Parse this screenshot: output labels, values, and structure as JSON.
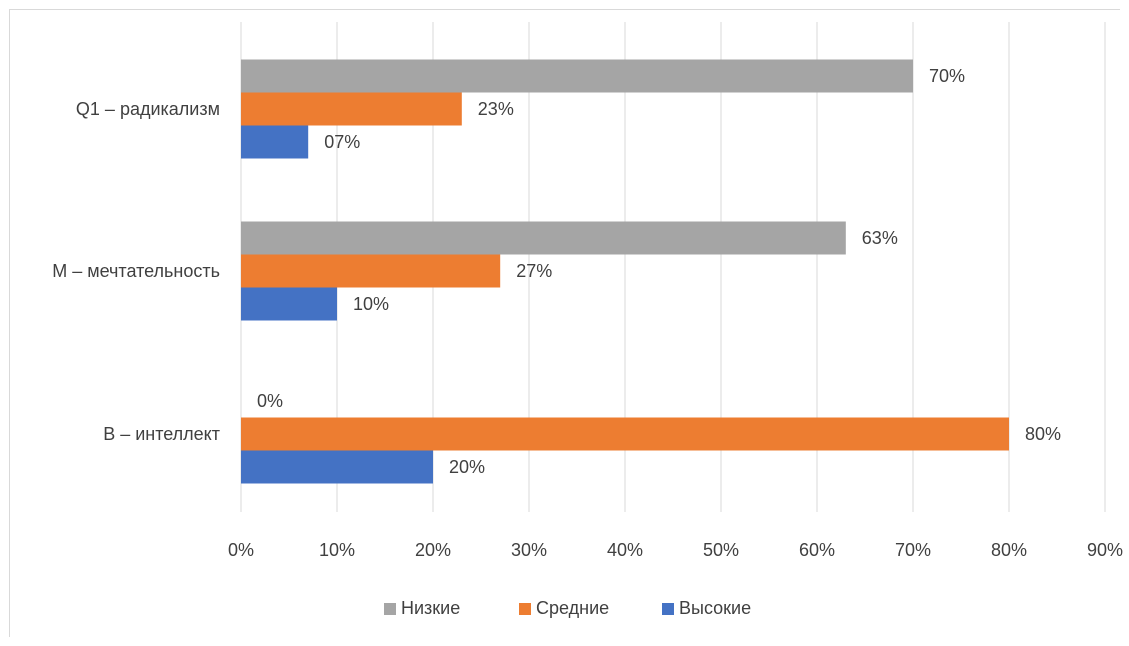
{
  "chart_data": {
    "type": "bar",
    "orientation": "horizontal",
    "categories": [
      "Q1 – радикализм",
      "M – мечтательность",
      "B – интеллект"
    ],
    "series": [
      {
        "name": "Низкие",
        "color": "#a5a5a5",
        "values": [
          70,
          63,
          0
        ],
        "labels": [
          "70%",
          "63%",
          "0%"
        ]
      },
      {
        "name": "Средние",
        "color": "#ed7d31",
        "values": [
          23,
          27,
          80
        ],
        "labels": [
          "23%",
          "27%",
          "80%"
        ]
      },
      {
        "name": "Высокие",
        "color": "#4472c4",
        "values": [
          7,
          10,
          20
        ],
        "labels": [
          "07%",
          "10%",
          "20%"
        ]
      }
    ],
    "x_ticks": [
      "0%",
      "10%",
      "20%",
      "30%",
      "40%",
      "50%",
      "60%",
      "70%",
      "80%",
      "90%"
    ],
    "xlim": [
      0,
      90
    ],
    "grid": true,
    "legend_position": "bottom",
    "title": "",
    "xlabel": "",
    "ylabel": ""
  }
}
